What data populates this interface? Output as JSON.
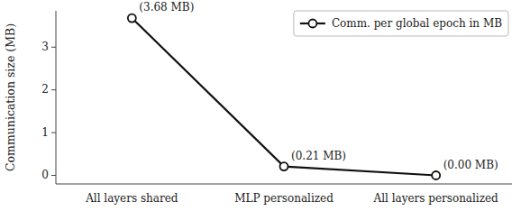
{
  "chart_data": {
    "type": "line",
    "categories": [
      "All layers shared",
      "MLP personalized",
      "All layers personalized"
    ],
    "series": [
      {
        "name": "Comm. per global epoch in MB",
        "color": "#111111",
        "marker": "circle",
        "line_style": "solid",
        "values": [
          3.68,
          0.21,
          0.0
        ],
        "value_labels": [
          "(3.68 MB)",
          "(0.21 MB)",
          "(0.00 MB)"
        ]
      }
    ],
    "data_labels": true,
    "ylabel": "Communication size (MB)",
    "ylim": [
      -0.2,
      3.85
    ],
    "yticks": [
      0,
      1,
      2,
      3
    ],
    "grid": false,
    "legend": "upper right"
  }
}
